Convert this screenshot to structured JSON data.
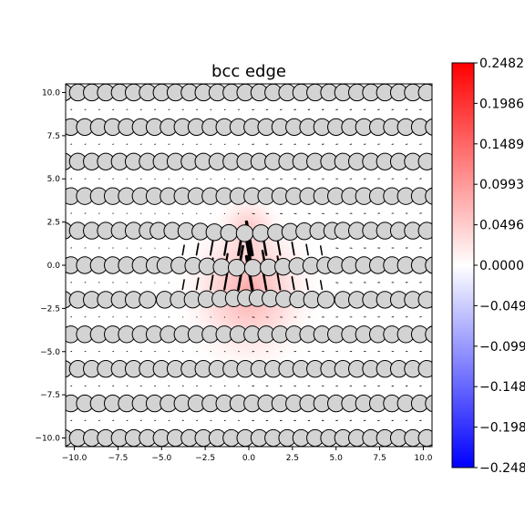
{
  "chart_data": {
    "type": "field-map",
    "title": "bcc edge",
    "xlim": [
      -10.5,
      10.5
    ],
    "ylim": [
      -10.5,
      10.5
    ],
    "xticks": [
      -10.0,
      -7.5,
      -5.0,
      -2.5,
      0.0,
      2.5,
      5.0,
      7.5,
      10.0
    ],
    "yticks": [
      -10.0,
      -7.5,
      -5.0,
      -2.5,
      0.0,
      2.5,
      5.0,
      7.5,
      10.0
    ],
    "xtick_labels": [
      "−10.0",
      "−7.5",
      "−5.0",
      "−2.5",
      "0.0",
      "2.5",
      "5.0",
      "7.5",
      "10.0"
    ],
    "ytick_labels": [
      "−10.0",
      "−7.5",
      "−5.0",
      "−2.5",
      "0.0",
      "2.5",
      "5.0",
      "7.5",
      "10.0"
    ],
    "colormap": "bwr",
    "colorbar": {
      "range": [
        -0.2482,
        0.2482
      ],
      "ticks": [
        0.2482,
        0.1986,
        0.1489,
        0.0993,
        0.0496,
        0.0,
        -0.0496,
        -0.0993,
        -0.1489,
        -0.1986,
        -0.2482
      ],
      "tick_labels": [
        "0.2482",
        "0.1986",
        "0.1489",
        "0.0993",
        "0.0496",
        "0.0000",
        "−0.0496",
        "−0.0993",
        "−0.1489",
        "−0.1986",
        "−0.2482"
      ]
    },
    "atom_rows_y": [
      10.0,
      8.0,
      6.0,
      4.0,
      2.0,
      0.0,
      -2.0,
      -4.0,
      -6.0,
      -8.0,
      -10.0
    ],
    "atom_spacing": 0.8,
    "atom_color": "#d3d3d3",
    "field_peak": [
      0.0,
      -1.5
    ],
    "field_max": 0.2482,
    "dislocation_core_x": 0.0
  }
}
